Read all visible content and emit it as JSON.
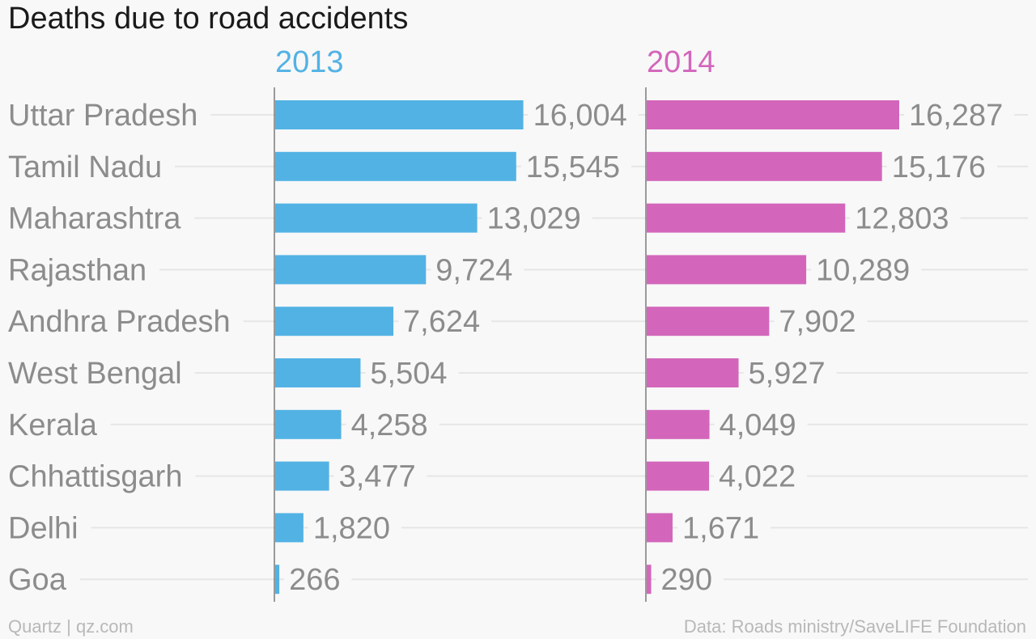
{
  "chart_data": {
    "type": "bar",
    "orientation": "horizontal",
    "title": "Deaths due to road accidents",
    "categories": [
      "Uttar Pradesh",
      "Tamil Nadu",
      "Maharashtra",
      "Rajasthan",
      "Andhra Pradesh",
      "West Bengal",
      "Kerala",
      "Chhattisgarh",
      "Delhi",
      "Goa"
    ],
    "series": [
      {
        "name": "2013",
        "color": "#52b2e4",
        "values": [
          16004,
          15545,
          13029,
          9724,
          7624,
          5504,
          4258,
          3477,
          1820,
          266
        ],
        "labels": [
          "16,004",
          "15,545",
          "13,029",
          "9,724",
          "7,624",
          "5,504",
          "4,258",
          "3,477",
          "1,820",
          "266"
        ]
      },
      {
        "name": "2014",
        "color": "#d366bb",
        "values": [
          16287,
          15176,
          12803,
          10289,
          7902,
          5927,
          4049,
          4022,
          1671,
          290
        ],
        "labels": [
          "16,287",
          "15,176",
          "12,803",
          "10,289",
          "7,902",
          "5,927",
          "4,049",
          "4,022",
          "1,671",
          "290"
        ]
      }
    ],
    "xlim": [
      0,
      16287
    ],
    "grid": true,
    "source_left": "Quartz | qz.com",
    "source_right": "Data: Roads ministry/SaveLIFE Foundation"
  }
}
